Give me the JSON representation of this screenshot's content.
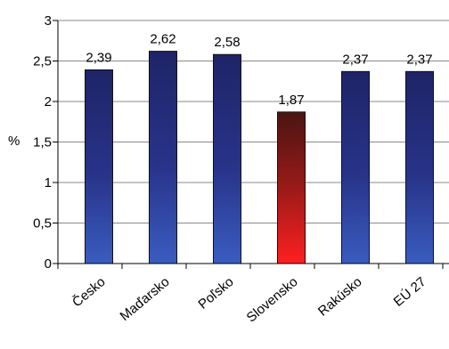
{
  "chart_data": {
    "type": "bar",
    "ylabel": "%",
    "ylim": [
      0,
      3
    ],
    "yticks": [
      "0",
      "0,5",
      "1",
      "1,5",
      "2",
      "2,5",
      "3"
    ],
    "grid": true,
    "categories": [
      "Česko",
      "Maďarsko",
      "Poľsko",
      "Slovensko",
      "Rakúsko",
      "EÚ 27"
    ],
    "values": [
      2.39,
      2.62,
      2.58,
      1.87,
      2.37,
      2.37
    ],
    "value_labels": [
      "2,39",
      "2,62",
      "2,58",
      "1,87",
      "2,37",
      "2,37"
    ],
    "bar_colors": [
      "#2a3a8e",
      "#2a3a8e",
      "#2a3a8e",
      "#c0161c",
      "#2a3a8e",
      "#2a3a8e"
    ]
  }
}
